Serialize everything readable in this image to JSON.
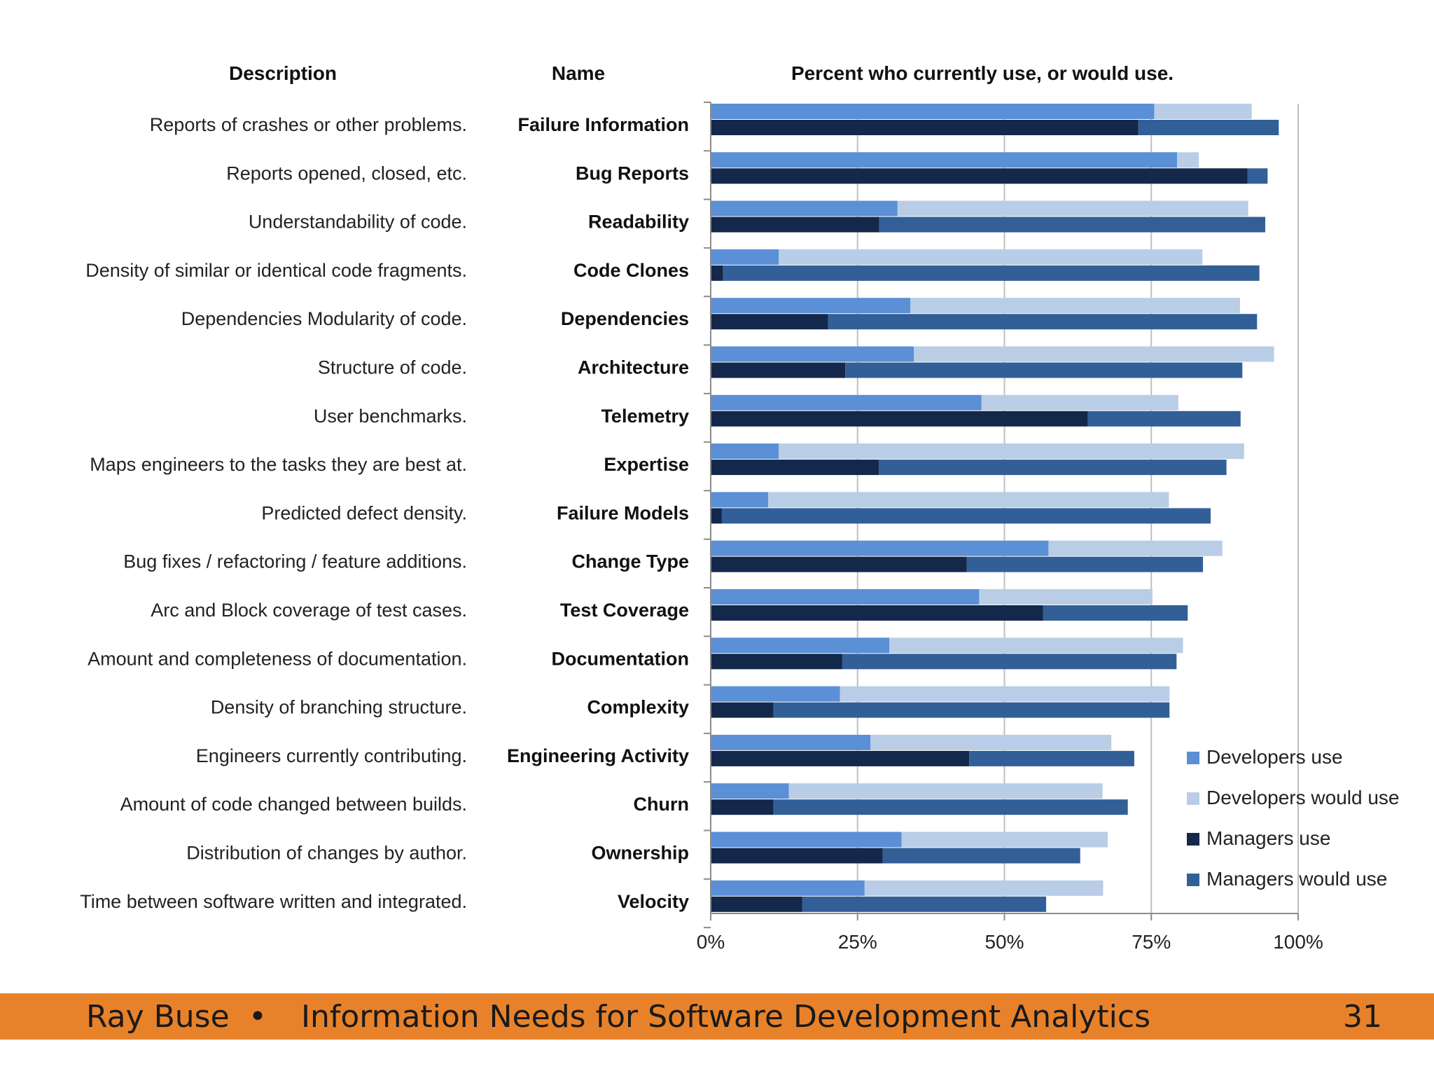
{
  "chart_data": {
    "type": "bar",
    "column_headers": {
      "description": "Description",
      "name": "Name",
      "chart": "Percent who currently use, or would use."
    },
    "categories": [
      "Failure Information",
      "Bug Reports",
      "Readability",
      "Code Clones",
      "Dependencies",
      "Architecture",
      "Telemetry",
      "Expertise",
      "Failure Models",
      "Change Type",
      "Test Coverage",
      "Documentation",
      "Complexity",
      "Engineering Activity",
      "Churn",
      "Ownership",
      "Velocity"
    ],
    "descriptions": [
      "Reports of crashes or other problems.",
      "Reports opened, closed, etc.",
      "Understandability of code.",
      "Density of similar or identical code fragments.",
      "Dependencies Modularity of code.",
      "Structure of code.",
      "User benchmarks.",
      "Maps engineers to the tasks they are best at.",
      "Predicted defect density.",
      "Bug fixes / refactoring / feature additions.",
      "Arc and Block coverage of test cases.",
      "Amount and completeness of documentation.",
      "Density of branching structure.",
      "Engineers currently contributing.",
      "Amount of code changed between builds.",
      "Distribution of changes by author.",
      "Time between software written and integrated."
    ],
    "series": [
      {
        "name": "Developers use",
        "color": "#5b8fd6",
        "values": [
          75.5,
          79.4,
          31.8,
          11.6,
          34.0,
          34.6,
          46.1,
          11.6,
          9.8,
          57.5,
          45.7,
          30.4,
          22.0,
          27.2,
          13.3,
          32.5,
          26.2
        ]
      },
      {
        "name": "Developers would use",
        "color": "#b9cde6",
        "values": [
          16.6,
          3.7,
          59.7,
          72.1,
          56.1,
          61.3,
          33.5,
          79.2,
          68.2,
          29.6,
          29.5,
          50.0,
          56.1,
          41.0,
          53.4,
          35.1,
          40.6
        ]
      },
      {
        "name": "Managers use",
        "color": "#13284a",
        "values": [
          72.8,
          91.4,
          28.7,
          2.1,
          20.0,
          22.9,
          64.2,
          28.6,
          1.9,
          43.6,
          56.6,
          22.4,
          10.7,
          44.0,
          10.7,
          29.3,
          15.6
        ]
      },
      {
        "name": "Managers would use",
        "color": "#335f98",
        "values": [
          23.9,
          3.4,
          65.7,
          91.3,
          73.0,
          67.6,
          26.0,
          59.2,
          83.2,
          40.2,
          24.6,
          56.9,
          67.4,
          28.1,
          60.3,
          33.6,
          41.5
        ]
      }
    ],
    "xlim": [
      0,
      100
    ],
    "x_ticks": [
      "0%",
      "25%",
      "50%",
      "75%",
      "100%"
    ],
    "grid": true,
    "legend_position": "bottom-right"
  },
  "footer": {
    "author": "Ray Buse",
    "separator": "•",
    "title": "Information Needs for Software Development Analytics",
    "page_number": "31",
    "background_color": "#e8822a"
  }
}
